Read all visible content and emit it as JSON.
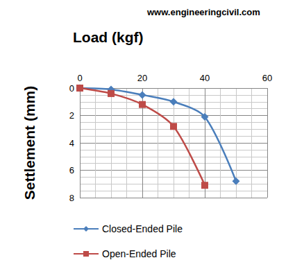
{
  "chart_data": {
    "type": "line",
    "annotations": [
      "www.engineeringcivil.com"
    ],
    "x_label": "Load (kgf)",
    "y_label": "Settlement (mm)",
    "xlim": [
      0,
      60
    ],
    "xticks": [
      0,
      20,
      40,
      60
    ],
    "ylim": [
      8,
      0
    ],
    "yticks": [
      0,
      2,
      4,
      6,
      8
    ],
    "grid": true,
    "legend": "bottom",
    "series": [
      {
        "name": "Closed-Ended Pile",
        "color": "#4a7ebb",
        "marker": "diamond",
        "x": [
          0,
          10,
          20,
          30,
          40,
          50
        ],
        "values": [
          0,
          0.1,
          0.5,
          1.0,
          2.1,
          6.8
        ]
      },
      {
        "name": "Open-Ended Pile",
        "color": "#be4b48",
        "marker": "square",
        "x": [
          0,
          10,
          20,
          30,
          40
        ],
        "values": [
          0,
          0.4,
          1.2,
          2.8,
          7.1
        ]
      }
    ]
  }
}
